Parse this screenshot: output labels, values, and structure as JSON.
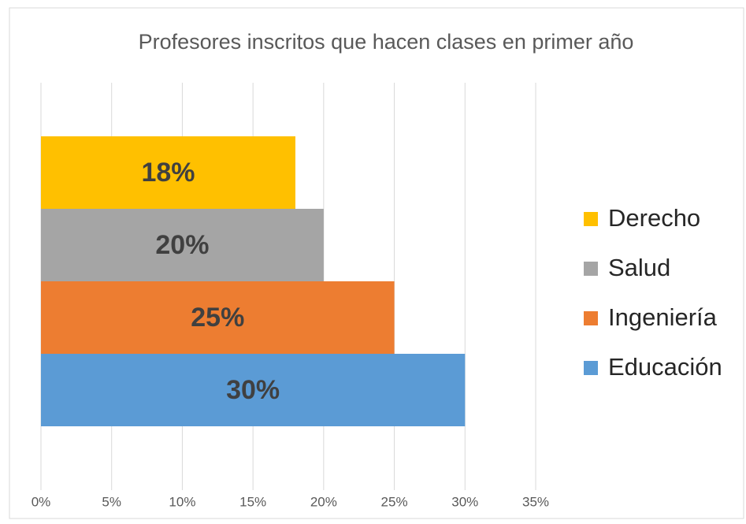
{
  "chart_data": {
    "type": "bar",
    "orientation": "horizontal",
    "title": "Profesores inscritos  que hacen clases en primer año",
    "categories": [
      null
    ],
    "series": [
      {
        "name": "Derecho",
        "color": "#ffc000",
        "values": [
          18
        ],
        "value_labels": [
          "18%"
        ]
      },
      {
        "name": "Salud",
        "color": "#a5a5a5",
        "values": [
          20
        ],
        "value_labels": [
          "20%"
        ]
      },
      {
        "name": "Ingeniería",
        "color": "#ed7d31",
        "values": [
          25
        ],
        "value_labels": [
          "25%"
        ]
      },
      {
        "name": "Educación",
        "color": "#5b9bd5",
        "values": [
          30
        ],
        "value_labels": [
          "30%"
        ]
      }
    ],
    "xlim": [
      0,
      35
    ],
    "xticks": [
      {
        "value": 0,
        "label": "0%"
      },
      {
        "value": 5,
        "label": "5%"
      },
      {
        "value": 10,
        "label": "10%"
      },
      {
        "value": 15,
        "label": "15%"
      },
      {
        "value": 20,
        "label": "20%"
      },
      {
        "value": 25,
        "label": "25%"
      },
      {
        "value": 30,
        "label": "30%"
      },
      {
        "value": 35,
        "label": "35%"
      }
    ],
    "grid": true,
    "legend": "right"
  }
}
